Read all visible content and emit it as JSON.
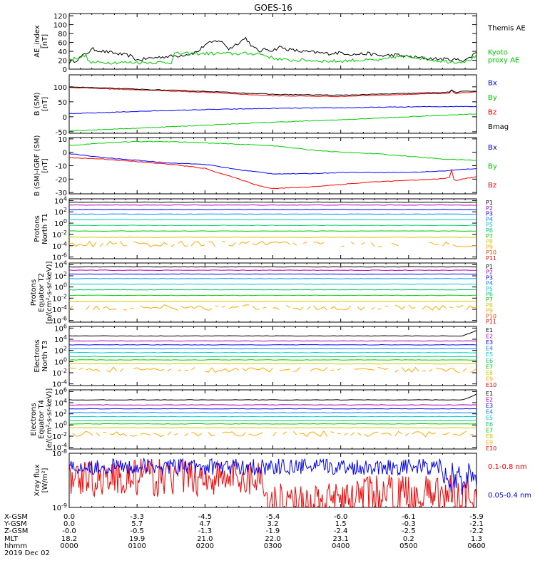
{
  "title": "GOES-16",
  "colors": {
    "black": "#000000",
    "green": "#00cc00",
    "blue": "#0000ff",
    "red": "#ff0000",
    "p_series": [
      "#000000",
      "#b000b0",
      "#0000ff",
      "#0088ff",
      "#00cccc",
      "#00cc66",
      "#00cc00",
      "#cccc00",
      "#ffaa00",
      "#ff4400",
      "#ff0000"
    ],
    "e_series": [
      "#000000",
      "#b000b0",
      "#0000ff",
      "#0088ff",
      "#00cccc",
      "#00cc66",
      "#00cc00",
      "#cccc00",
      "#ffaa00",
      "#ff0000"
    ]
  },
  "chart_data": [
    {
      "type": "line",
      "id": "ae",
      "ylabel": [
        "AE_index",
        "[nT]"
      ],
      "ylim": [
        0,
        125
      ],
      "ticks": [
        {
          "v": 0,
          "t": "0"
        },
        {
          "v": 20,
          "t": "20"
        },
        {
          "v": 40,
          "t": "40"
        },
        {
          "v": 60,
          "t": "60"
        },
        {
          "v": 80,
          "t": "80"
        },
        {
          "v": 100,
          "t": "100"
        },
        {
          "v": 120,
          "t": "120"
        }
      ],
      "series": [
        {
          "name": "Themis AE",
          "color": "#000000",
          "legend": [
            "Themis AE"
          ],
          "x": [
            0,
            0.1,
            0.2,
            0.35,
            0.5,
            0.7,
            0.9,
            1.0,
            1.2,
            1.4,
            1.6,
            1.8,
            1.9,
            2.0,
            2.1,
            2.2,
            2.3,
            2.35,
            2.4,
            2.5,
            2.6,
            2.7,
            2.8,
            2.9,
            3.0,
            3.1,
            3.2,
            3.4,
            3.6,
            3.8,
            4.0,
            4.2,
            4.4,
            4.6,
            4.8,
            5.0,
            5.2,
            5.4,
            5.6,
            5.8,
            5.9,
            6.0
          ],
          "y": [
            15,
            20,
            30,
            45,
            40,
            35,
            30,
            20,
            25,
            28,
            30,
            35,
            40,
            55,
            60,
            65,
            55,
            45,
            50,
            60,
            70,
            50,
            40,
            45,
            42,
            50,
            45,
            40,
            38,
            35,
            37,
            33,
            35,
            30,
            32,
            28,
            25,
            23,
            22,
            20,
            25,
            40
          ]
        },
        {
          "name": "Kyoto proxy AE",
          "color": "#00cc00",
          "legend": [
            "Kyoto",
            "proxy AE"
          ],
          "x": [
            0,
            0.1,
            0.25,
            0.3,
            0.6,
            1.3,
            1.5,
            1.55,
            2.0,
            2.5,
            2.8,
            3.0,
            3.2,
            3.5,
            3.8,
            4.0,
            4.2,
            4.6,
            4.8,
            5.0,
            5.2,
            5.3,
            5.5,
            5.7,
            5.85,
            5.95,
            6.0
          ],
          "y": [
            20,
            25,
            30,
            15,
            15,
            15,
            15,
            35,
            35,
            35,
            35,
            25,
            20,
            20,
            18,
            18,
            20,
            20,
            28,
            28,
            25,
            22,
            18,
            16,
            18,
            25,
            30
          ]
        }
      ]
    },
    {
      "type": "line",
      "id": "bsm",
      "ylabel": [
        "B (SM)",
        "[nT]"
      ],
      "ylim": [
        -55,
        140
      ],
      "ticks": [
        {
          "v": -50,
          "t": "-50"
        },
        {
          "v": 0,
          "t": "0"
        },
        {
          "v": 50,
          "t": "50"
        },
        {
          "v": 100,
          "t": "100"
        }
      ],
      "series": [
        {
          "name": "Bx",
          "color": "#0000ff",
          "legend": [
            "Bx"
          ],
          "x": [
            0,
            1,
            2,
            3,
            4,
            5,
            6
          ],
          "y": [
            10,
            18,
            24,
            28,
            30,
            33,
            35
          ]
        },
        {
          "name": "By",
          "color": "#00cc00",
          "legend": [
            "By"
          ],
          "x": [
            0,
            1,
            2,
            3,
            4,
            5,
            6
          ],
          "y": [
            -47,
            -38,
            -28,
            -18,
            -10,
            0,
            10
          ]
        },
        {
          "name": "Bz",
          "color": "#ff0000",
          "legend": [
            "Bz"
          ],
          "x": [
            0,
            1,
            2,
            3,
            4,
            5,
            5.6,
            5.64,
            5.68,
            5.75,
            6.0
          ],
          "y": [
            98,
            90,
            82,
            70,
            68,
            75,
            78,
            90,
            76,
            80,
            82
          ]
        },
        {
          "name": "Bmag",
          "color": "#000000",
          "legend": [
            "Bmag"
          ],
          "x": [
            0,
            1,
            2,
            3,
            4,
            5,
            5.6,
            5.64,
            5.68,
            5.75,
            6.0
          ],
          "y": [
            100,
            92,
            85,
            75,
            72,
            78,
            82,
            92,
            80,
            84,
            86
          ]
        }
      ]
    },
    {
      "type": "line",
      "id": "bigrf",
      "ylabel": [
        "B (SM)-IGRF (SM)",
        "[nT]"
      ],
      "ylim": [
        -31,
        11
      ],
      "ticks": [
        {
          "v": -30,
          "t": "-30"
        },
        {
          "v": -20,
          "t": "-20"
        },
        {
          "v": -10,
          "t": "-10"
        },
        {
          "v": 0,
          "t": "0"
        },
        {
          "v": 10,
          "t": "10"
        }
      ],
      "series": [
        {
          "name": "Bx",
          "color": "#0000ff",
          "legend": [
            "Bx"
          ],
          "x": [
            0,
            0.5,
            1,
            1.5,
            2,
            2.5,
            3,
            3.5,
            4,
            4.5,
            5,
            5.5,
            6
          ],
          "y": [
            -1,
            -4,
            -6,
            -8,
            -9,
            -13,
            -16,
            -16,
            -15,
            -15,
            -15,
            -14,
            -12
          ]
        },
        {
          "name": "By",
          "color": "#00cc00",
          "legend": [
            "By"
          ],
          "x": [
            0,
            0.5,
            1,
            1.5,
            2,
            2.5,
            3,
            3.5,
            4,
            4.5,
            5,
            5.5,
            6
          ],
          "y": [
            5,
            7,
            8,
            8,
            7,
            6,
            5,
            2,
            0,
            -1,
            -3,
            -5,
            -6
          ]
        },
        {
          "name": "Bz",
          "color": "#ff0000",
          "legend": [
            "Bz"
          ],
          "x": [
            0,
            0.5,
            1,
            1.5,
            2,
            2.5,
            2.8,
            3.0,
            3.5,
            4,
            4.5,
            5,
            5.4,
            5.6,
            5.62,
            5.66,
            5.7,
            6
          ],
          "y": [
            -4,
            -5,
            -7,
            -9,
            -12,
            -20,
            -25,
            -27,
            -26,
            -24,
            -22,
            -21,
            -20,
            -19,
            -10,
            -20,
            -21,
            -18
          ]
        }
      ]
    },
    {
      "type": "line",
      "id": "pn",
      "log": true,
      "ylabel": [
        "Protons",
        "North T1"
      ],
      "ylim": [
        -6.3,
        4.3
      ],
      "ticks": [
        {
          "v": -6,
          "t": "10-6"
        },
        {
          "v": -4,
          "t": "10-4"
        },
        {
          "v": -2,
          "t": "10-2"
        },
        {
          "v": 0,
          "t": "100"
        },
        {
          "v": 2,
          "t": "102"
        },
        {
          "v": 4,
          "t": "104"
        }
      ],
      "channels": [
        "P1",
        "P2",
        "P3",
        "P4",
        "P5",
        "P6",
        "P7",
        "P8",
        "P9",
        "P10",
        "P11"
      ],
      "levels": [
        3.7,
        3.2,
        2.4,
        1.6,
        0.6,
        -0.4,
        -1.4,
        -2.5,
        -3.7,
        -99,
        -99
      ]
    },
    {
      "type": "line",
      "id": "pe",
      "log": true,
      "ylabel": [
        "Protons",
        "Equator T2",
        "[p/(cm²-s-sr-keV)]"
      ],
      "ylim": [
        -6.3,
        4.3
      ],
      "ticks": [
        {
          "v": -6,
          "t": "10-6"
        },
        {
          "v": -4,
          "t": "10-4"
        },
        {
          "v": -2,
          "t": "10-2"
        },
        {
          "v": 0,
          "t": "100"
        },
        {
          "v": 2,
          "t": "102"
        },
        {
          "v": 4,
          "t": "104"
        }
      ],
      "channels": [
        "P1",
        "P2",
        "P3",
        "P4",
        "P5",
        "P6",
        "P7",
        "P8",
        "P9",
        "P10",
        "P11"
      ],
      "levels": [
        3.6,
        3.0,
        2.3,
        1.5,
        0.5,
        -0.5,
        -1.5,
        -2.6,
        -3.7,
        -99,
        -99
      ]
    },
    {
      "type": "line",
      "id": "en",
      "log": true,
      "ylabel": [
        "Electrons",
        "North T3"
      ],
      "ylim": [
        -4.3,
        6.3
      ],
      "ticks": [
        {
          "v": -4,
          "t": "10-4"
        },
        {
          "v": -2,
          "t": "10-2"
        },
        {
          "v": 0,
          "t": "100"
        },
        {
          "v": 2,
          "t": "102"
        },
        {
          "v": 4,
          "t": "104"
        },
        {
          "v": 6,
          "t": "106"
        }
      ],
      "channels": [
        "E1",
        "E2",
        "E3",
        "E4",
        "E5",
        "E6",
        "E7",
        "E8",
        "E9",
        "E10"
      ],
      "levels": [
        4.6,
        3.7,
        3.0,
        2.3,
        1.6,
        0.9,
        0.3,
        -0.4,
        -1.5,
        -99
      ]
    },
    {
      "type": "line",
      "id": "ee",
      "log": true,
      "ylabel": [
        "Electrons",
        "Equator T4",
        "[e/(cm²-s-sr-keV)]"
      ],
      "ylim": [
        -4.3,
        6.3
      ],
      "ticks": [
        {
          "v": -4,
          "t": "10-4"
        },
        {
          "v": -2,
          "t": "10-2"
        },
        {
          "v": 0,
          "t": "100"
        },
        {
          "v": 2,
          "t": "102"
        },
        {
          "v": 4,
          "t": "104"
        },
        {
          "v": 6,
          "t": "106"
        }
      ],
      "channels": [
        "E1",
        "E2",
        "E3",
        "E4",
        "E5",
        "E6",
        "E7",
        "E8",
        "E9",
        "E10"
      ],
      "levels": [
        4.5,
        3.6,
        2.9,
        2.2,
        1.5,
        0.8,
        0.2,
        -0.5,
        -1.6,
        -99
      ]
    },
    {
      "type": "line",
      "id": "xray",
      "log": true,
      "ylabel": [
        "Xray flux",
        "[W/m²]"
      ],
      "ylim": [
        -9,
        -8
      ],
      "ticks": [
        {
          "v": -9,
          "t": "10-9"
        },
        {
          "v": -8,
          "t": "10-8"
        }
      ],
      "series": [
        {
          "name": "0.1-0.8 nm",
          "color": "#ff0000",
          "legend": [
            "0.1-0.8 nm"
          ]
        },
        {
          "name": "0.05-0.4 nm",
          "color": "#0000ff",
          "legend": [
            "0.05-0.4 nm"
          ]
        }
      ]
    }
  ],
  "x_axis": {
    "range": [
      0,
      6
    ],
    "row_labels": [
      "X-GSM",
      "Y-GSM",
      "Z-GSM",
      "MLT",
      "hhmm",
      "2019 Dec 02"
    ],
    "columns": [
      {
        "x": 0,
        "values": [
          "0.0",
          "0.0",
          "-0.0",
          "18.2",
          "0000"
        ]
      },
      {
        "x": 1,
        "values": [
          "-3.3",
          "5.7",
          "-0.5",
          "19.9",
          "0100"
        ]
      },
      {
        "x": 2,
        "values": [
          "-4.5",
          "4.7",
          "-1.3",
          "21.0",
          "0200"
        ]
      },
      {
        "x": 3,
        "values": [
          "-5.4",
          "3.2",
          "-1.9",
          "22.0",
          "0300"
        ]
      },
      {
        "x": 4,
        "values": [
          "-6.0",
          "1.5",
          "-2.4",
          "23.1",
          "0400"
        ]
      },
      {
        "x": 5,
        "values": [
          "-6.1",
          "-0.3",
          "-2.5",
          "0.2",
          "0500"
        ]
      },
      {
        "x": 6,
        "values": [
          "-5.9",
          "-2.1",
          "-2.2",
          "1.3",
          "0600"
        ]
      }
    ]
  }
}
